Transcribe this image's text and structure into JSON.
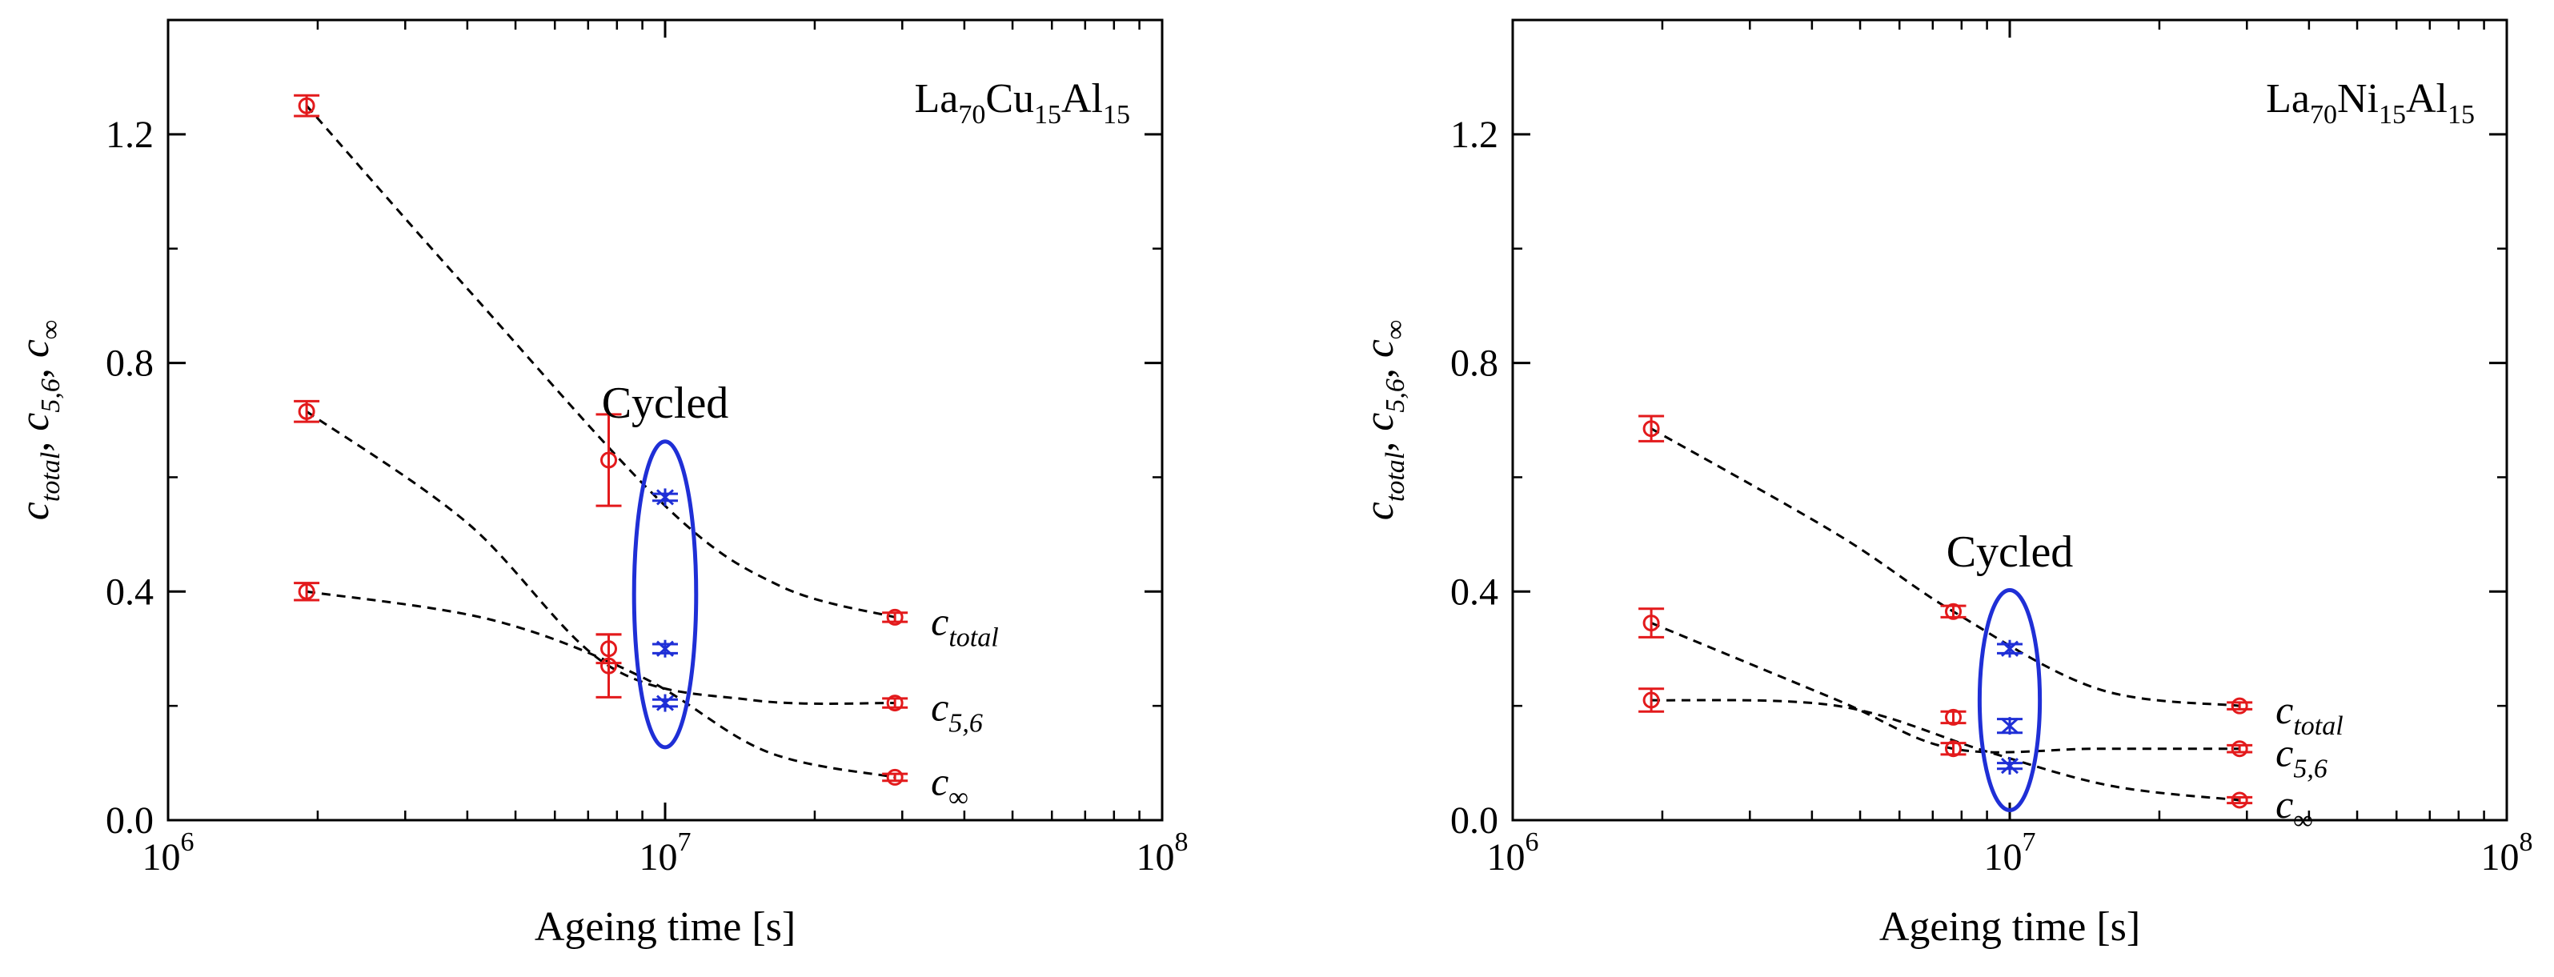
{
  "figure": {
    "panel_count": 2
  },
  "chart_data": [
    {
      "type": "scatter",
      "title": "",
      "composition": {
        "base": "La",
        "a": "70",
        "el2": "Cu",
        "b": "15",
        "el3": "Al",
        "c": "15"
      },
      "xlabel": "Ageing time [s]",
      "ylabel": {
        "c": "c",
        "s1": "total",
        "sep1": ", ",
        "s2": "5,6",
        "sep2": ", ",
        "s3": "∞"
      },
      "xscale": "log",
      "xlim": [
        1000000,
        100000000
      ],
      "ylim": [
        0,
        1.4
      ],
      "xticks": [
        {
          "base": "10",
          "exp": "6"
        },
        {
          "base": "10",
          "exp": "7"
        },
        {
          "base": "10",
          "exp": "8"
        }
      ],
      "yticks": [
        "0.0",
        "0.4",
        "0.8",
        "1.2"
      ],
      "ytick_values": [
        0,
        0.4,
        0.8,
        1.2
      ],
      "cycled_text": "Cycled",
      "cycled_ellipse": {
        "x_center": 10000000,
        "y_center": 0.395,
        "x_low": 8700000,
        "x_high": 11600000,
        "y_low": 0.12,
        "y_high": 0.655
      },
      "series": [
        {
          "name": "c_total",
          "label": {
            "c": "c",
            "sub": "total"
          },
          "x": [
            1900000,
            7700000,
            29000000
          ],
          "y": [
            1.25,
            0.63,
            0.355
          ],
          "err": [
            0.018,
            0.08,
            0.008
          ],
          "fit_x": [
            1900000,
            4000000,
            10000000,
            17000000,
            29000000
          ],
          "fit_y": [
            1.25,
            0.93,
            0.55,
            0.41,
            0.355
          ]
        },
        {
          "name": "c_5,6",
          "label": {
            "c": "c",
            "sub": "5,6"
          },
          "x": [
            1900000,
            7700000,
            29000000
          ],
          "y": [
            0.715,
            0.27,
            0.205
          ],
          "err": [
            0.018,
            0.055,
            0.008
          ],
          "fit_x": [
            1900000,
            4000000,
            7700000,
            15000000,
            29000000
          ],
          "fit_y": [
            0.715,
            0.52,
            0.27,
            0.21,
            0.205
          ]
        },
        {
          "name": "c_inf",
          "label": {
            "c": "c",
            "sub": "∞"
          },
          "x": [
            1900000,
            7700000,
            29000000
          ],
          "y": [
            0.4,
            0.3,
            0.075
          ],
          "err": [
            0.015,
            0.025,
            0.006
          ],
          "fit_x": [
            1900000,
            4500000,
            9000000,
            16000000,
            29000000
          ],
          "fit_y": [
            0.4,
            0.35,
            0.25,
            0.12,
            0.075
          ]
        }
      ],
      "cycled_points": [
        {
          "x": 10000000,
          "y": 0.565,
          "err": 0.006
        },
        {
          "x": 10000000,
          "y": 0.3,
          "err": 0.008
        },
        {
          "x": 10000000,
          "y": 0.205,
          "err": 0.006
        }
      ]
    },
    {
      "type": "scatter",
      "title": "",
      "composition": {
        "base": "La",
        "a": "70",
        "el2": "Ni",
        "b": "15",
        "el3": "Al",
        "c": "15"
      },
      "xlabel": "Ageing time [s]",
      "ylabel": {
        "c": "c",
        "s1": "total",
        "sep1": ", ",
        "s2": "5,6",
        "sep2": ", ",
        "s3": "∞"
      },
      "xscale": "log",
      "xlim": [
        1000000,
        100000000
      ],
      "ylim": [
        0,
        1.4
      ],
      "xticks": [
        {
          "base": "10",
          "exp": "6"
        },
        {
          "base": "10",
          "exp": "7"
        },
        {
          "base": "10",
          "exp": "8"
        }
      ],
      "yticks": [
        "0.0",
        "0.4",
        "0.8",
        "1.2"
      ],
      "ytick_values": [
        0,
        0.4,
        0.8,
        1.2
      ],
      "cycled_text": "Cycled",
      "cycled_ellipse": {
        "x_center": 10000000,
        "y_center": 0.21,
        "x_low": 8700000,
        "x_high": 11500000,
        "y_low": 0.01,
        "y_high": 0.395
      },
      "series": [
        {
          "name": "c_total",
          "label": {
            "c": "c",
            "sub": "total"
          },
          "x": [
            1900000,
            7700000,
            29000000
          ],
          "y": [
            0.685,
            0.365,
            0.2
          ],
          "err": [
            0.022,
            0.01,
            0.006
          ],
          "fit_x": [
            1900000,
            4500000,
            7700000,
            15000000,
            29000000
          ],
          "fit_y": [
            0.685,
            0.5,
            0.365,
            0.23,
            0.2
          ]
        },
        {
          "name": "c_5,6",
          "label": {
            "c": "c",
            "sub": "5,6"
          },
          "x": [
            1900000,
            7700000,
            29000000
          ],
          "y": [
            0.345,
            0.125,
            0.125
          ],
          "err": [
            0.025,
            0.01,
            0.006
          ],
          "fit_x": [
            1900000,
            4500000,
            7700000,
            15000000,
            29000000
          ],
          "fit_y": [
            0.345,
            0.21,
            0.125,
            0.125,
            0.125
          ]
        },
        {
          "name": "c_inf",
          "label": {
            "c": "c",
            "sub": "∞"
          },
          "x": [
            1900000,
            7700000,
            29000000
          ],
          "y": [
            0.21,
            0.18,
            0.035
          ],
          "err": [
            0.02,
            0.01,
            0.005
          ],
          "fit_x": [
            1900000,
            4500000,
            9000000,
            16000000,
            29000000
          ],
          "fit_y": [
            0.21,
            0.2,
            0.12,
            0.06,
            0.035
          ]
        }
      ],
      "cycled_points": [
        {
          "x": 10000000,
          "y": 0.3,
          "err": 0.008
        },
        {
          "x": 10000000,
          "y": 0.165,
          "err": 0.012
        },
        {
          "x": 10000000,
          "y": 0.095,
          "err": 0.005
        }
      ]
    }
  ],
  "colors": {
    "data_points": "#e31a1c",
    "cycled_points": "#1f2fd6",
    "cycled_ellipse": "#1f2fd6",
    "fit_lines": "#000000",
    "axes": "#000000"
  }
}
